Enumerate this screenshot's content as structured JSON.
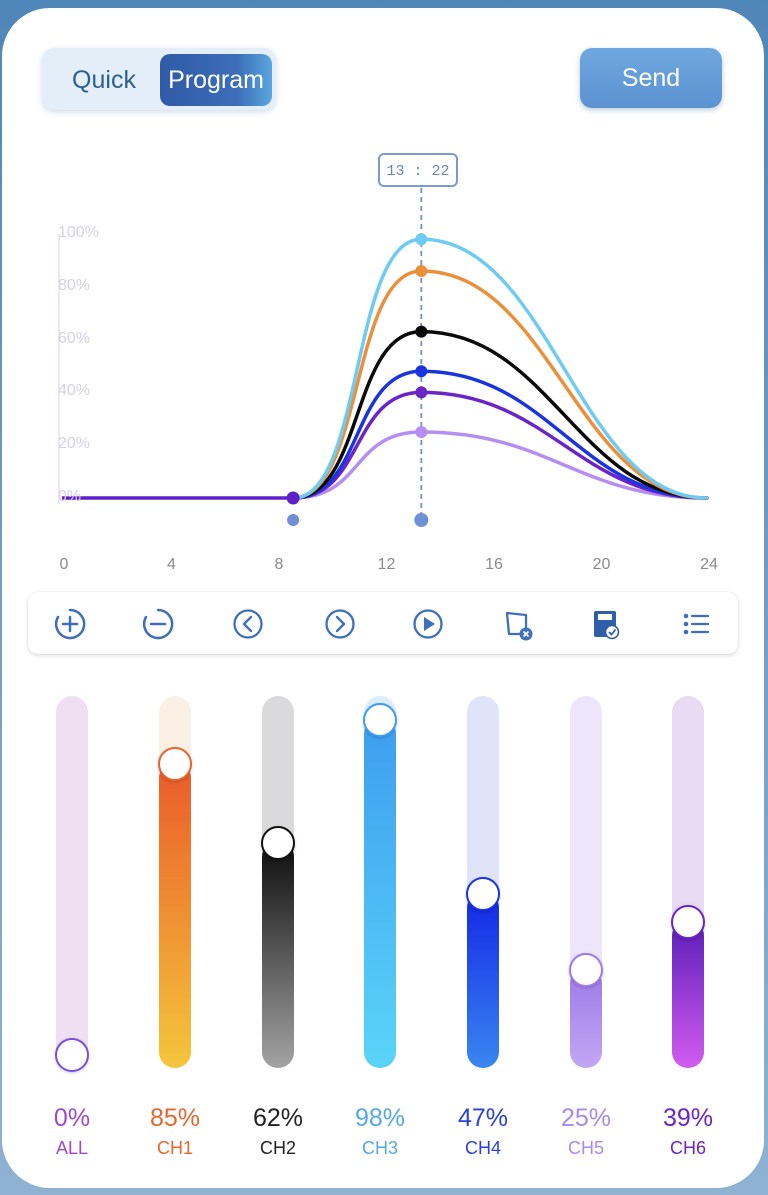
{
  "mode_switch": {
    "quick_label": "Quick",
    "program_label": "Program",
    "active": "Program"
  },
  "send_label": "Send",
  "chart_data": {
    "type": "line",
    "time_marker": "13 : 22",
    "x_ticks": [
      "0",
      "4",
      "8",
      "12",
      "16",
      "20",
      "24"
    ],
    "y_ticks": [
      "100%",
      "80%",
      "60%",
      "40%",
      "20%",
      "0%"
    ],
    "xlim": [
      0,
      24
    ],
    "ylim": [
      0,
      100
    ],
    "start_hour": 8.6,
    "peak_hour": 13.37,
    "end_hour": 24,
    "series": [
      {
        "color": "#6ecbf3",
        "peak": 98
      },
      {
        "color": "#ec8f3a",
        "peak": 86
      },
      {
        "color": "#0a0a0a",
        "peak": 63
      },
      {
        "color": "#1a35e0",
        "peak": 48
      },
      {
        "color": "#6a24c8",
        "peak": 40
      },
      {
        "color": "#b58ef0",
        "peak": 25
      }
    ],
    "marker_color": "#5f20c8",
    "dot_color": "#6f8fd6"
  },
  "toolbar": [
    {
      "name": "add-point-icon"
    },
    {
      "name": "remove-point-icon"
    },
    {
      "name": "previous-point-icon"
    },
    {
      "name": "next-point-icon"
    },
    {
      "name": "play-preview-icon"
    },
    {
      "name": "clear-program-icon"
    },
    {
      "name": "save-program-icon"
    },
    {
      "name": "program-list-icon"
    }
  ],
  "channels": [
    {
      "label": "ALL",
      "value_text": "0%",
      "value": 0,
      "text_color": "#a048c8",
      "label_color": "#a048c8",
      "track": "#eee0f2",
      "fill_top": "#d9b8ea",
      "fill_bottom": "#d9b8ea",
      "knob_border": "#7b4fd6"
    },
    {
      "label": "CH1",
      "value_text": "85%",
      "value": 85,
      "text_color": "#e8652e",
      "label_color": "#e8652e",
      "track": "#fbf0e4",
      "fill_top": "#ea5a2a",
      "fill_bottom": "#f4c63c",
      "knob_border": "#e8652e"
    },
    {
      "label": "CH2",
      "value_text": "62%",
      "value": 62,
      "text_color": "#222222",
      "label_color": "#222222",
      "track": "#dadadc",
      "fill_top": "#0c0c0c",
      "fill_bottom": "#a3a3a3",
      "knob_border": "#111111"
    },
    {
      "label": "CH3",
      "value_text": "98%",
      "value": 98,
      "text_color": "#55a8e8",
      "label_color": "#55a8e8",
      "track": "#dceefb",
      "fill_top": "#3d9ef0",
      "fill_bottom": "#5ad4f8",
      "knob_border": "#3d9ef0"
    },
    {
      "label": "CH4",
      "value_text": "47%",
      "value": 47,
      "text_color": "#2a42d8",
      "label_color": "#2a42d8",
      "track": "#dfe4fa",
      "fill_top": "#1226e6",
      "fill_bottom": "#3a86f0",
      "knob_border": "#1a35e0"
    },
    {
      "label": "CH5",
      "value_text": "25%",
      "value": 25,
      "text_color": "#a98ae8",
      "label_color": "#a98ae8",
      "track": "#ede6fb",
      "fill_top": "#9d7ae8",
      "fill_bottom": "#c2a6f2",
      "knob_border": "#9d7ae8"
    },
    {
      "label": "CH6",
      "value_text": "39%",
      "value": 39,
      "text_color": "#6a24c8",
      "label_color": "#6a24c8",
      "track": "#e8dbf3",
      "fill_top": "#5a1cb8",
      "fill_bottom": "#d25cf0",
      "knob_border": "#6a24c8"
    }
  ]
}
